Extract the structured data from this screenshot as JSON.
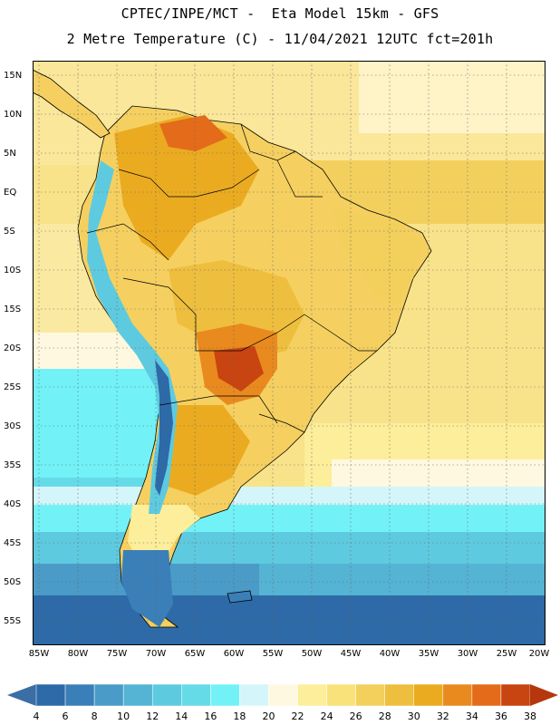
{
  "header": {
    "line1": "CPTEC/INPE/MCT -  Eta Model 15km - GFS",
    "line2": "2 Metre Temperature (C) - 11/04/2021 12UTC fct=201h"
  },
  "map": {
    "lat_labels": [
      "15N",
      "10N",
      "5N",
      "EQ",
      "5S",
      "10S",
      "15S",
      "20S",
      "25S",
      "30S",
      "35S",
      "40S",
      "45S",
      "50S",
      "55S"
    ],
    "lon_labels": [
      "85W",
      "80W",
      "75W",
      "70W",
      "65W",
      "60W",
      "55W",
      "50W",
      "45W",
      "40W",
      "35W",
      "30W",
      "25W",
      "20W"
    ],
    "extent": {
      "lon_min": -86,
      "lon_max": -20,
      "lat_min": -58,
      "lat_max": 17
    },
    "regions": [
      {
        "name": "tropical-ocean-north",
        "temp_c": 28
      },
      {
        "name": "tropical-ocean-south",
        "temp_c": 26
      },
      {
        "name": "amazon-interior",
        "temp_c": 30
      },
      {
        "name": "chaco-hotspot",
        "temp_c": 34
      },
      {
        "name": "andes-cold-spine",
        "temp_c": 12
      },
      {
        "name": "patagonia",
        "temp_c": 8
      },
      {
        "name": "southern-ocean",
        "temp_c": 6
      }
    ]
  },
  "colorbar": {
    "ticks": [
      "4",
      "6",
      "8",
      "10",
      "12",
      "14",
      "16",
      "18",
      "20",
      "22",
      "24",
      "26",
      "28",
      "30",
      "32",
      "34",
      "36",
      "38"
    ],
    "colors": [
      "#2d6aa7",
      "#3a7fb8",
      "#4a9bc7",
      "#55b3d4",
      "#5ecadf",
      "#66dbe8",
      "#72f2f7",
      "#d4f6fb",
      "#fff8e0",
      "#fcee9a",
      "#f9e27a",
      "#f3cf5b",
      "#eebe3e",
      "#ebab21",
      "#e98a1f",
      "#e36b1a",
      "#c84410"
    ],
    "left_arrow_color": "#3a6ea5",
    "right_arrow_color": "#b6370e"
  }
}
